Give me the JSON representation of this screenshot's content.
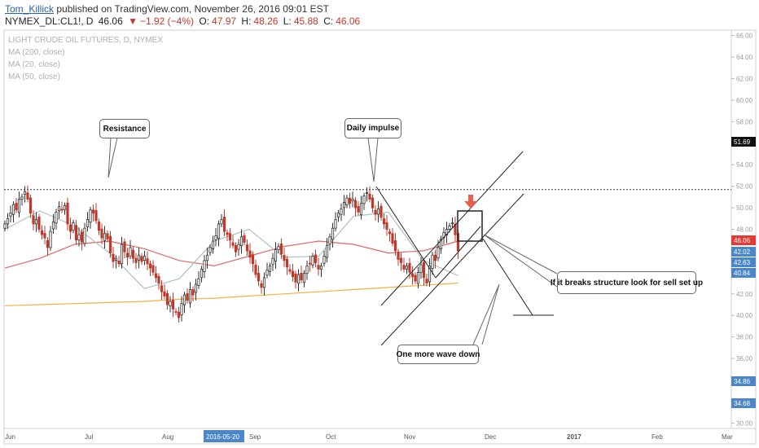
{
  "header": {
    "author": "Tom_Killick",
    "published": "published on TradingView.com, November 26, 2016 09:01 EST",
    "symbol": "NYMEX_DL:CL1!,",
    "interval": "D",
    "last": "46.06",
    "change": "−1.92 (−4%)",
    "open_label": "O:",
    "open": "47.97",
    "high_label": "H:",
    "high": "48.26",
    "low_label": "L:",
    "low": "45.88",
    "close_label": "C:",
    "close": "46.06"
  },
  "legend": {
    "title": "LIGHT CRUDE OIL FUTURES, D, NYMEX",
    "ma200": "MA (200, close)",
    "ma20": "MA (20, close)",
    "ma50": "MA (50, close)"
  },
  "annotations": {
    "resistance": "Resistance",
    "impulse": "Daily impulse",
    "wave": "One more wave down",
    "breaks": "If it breaks structure look for sell set up"
  },
  "colors": {
    "up": "#333333",
    "down": "#c0392b",
    "ma200": "#f5b041",
    "ma50": "#e06666",
    "ma20": "#a8c4c0",
    "price_label": "#e53935",
    "ma_label": "#4a86c8",
    "arrow": "#e8604c"
  },
  "chart_data": {
    "type": "candlestick",
    "title": "LIGHT CRUDE OIL FUTURES, D, NYMEX",
    "ylim": [
      29.5,
      66.5
    ],
    "y_ticks": [
      "30.00",
      "32.00",
      "34.00",
      "36.00",
      "38.00",
      "40.00",
      "42.00",
      "44.00",
      "46.00",
      "48.00",
      "50.00",
      "52.00",
      "54.00",
      "56.00",
      "58.00",
      "60.00",
      "62.00",
      "64.00",
      "66.00"
    ],
    "x_labels": [
      "Jun",
      "Jul",
      "Aug",
      "2016-05-20",
      "Sep",
      "Oct",
      "Nov",
      "Dec",
      "2017",
      "Feb",
      "Mar"
    ],
    "cursor_date": "2016-05-20",
    "resistance": 51.69,
    "price_labels": [
      {
        "text": "51.69",
        "kind": "resistance"
      },
      {
        "text": "46.06",
        "kind": "price"
      },
      {
        "text": "42.02",
        "kind": "ma"
      },
      {
        "text": "42.63",
        "kind": "ma"
      },
      {
        "text": "40.84",
        "kind": "ma"
      },
      {
        "text": "34.86",
        "kind": "ma"
      },
      {
        "text": "34.68",
        "kind": "ma"
      }
    ],
    "closes": [
      48.5,
      49.0,
      49.5,
      50.3,
      49.8,
      50.8,
      51.0,
      51.5,
      50.8,
      49.5,
      48.5,
      48.9,
      48.0,
      47.5,
      47.2,
      46.3,
      47.8,
      48.7,
      49.6,
      50.1,
      49.8,
      50.2,
      48.5,
      47.8,
      48.6,
      47.0,
      47.5,
      46.8,
      48.1,
      48.9,
      49.8,
      49.5,
      48.8,
      47.9,
      47.2,
      47.6,
      47.1,
      45.8,
      45.0,
      45.3,
      44.8,
      46.6,
      45.9,
      45.4,
      46.3,
      45.3,
      44.9,
      45.6,
      45.0,
      45.5,
      44.8,
      44.4,
      44.0,
      43.5,
      43.0,
      42.2,
      41.8,
      41.0,
      41.3,
      40.6,
      40.3,
      39.8,
      41.1,
      41.9,
      41.4,
      42.4,
      41.9,
      42.9,
      43.4,
      44.3,
      45.1,
      45.6,
      46.3,
      46.9,
      47.4,
      48.5,
      48.9,
      47.8,
      47.5,
      47.0,
      46.5,
      45.9,
      46.6,
      47.3,
      46.8,
      46.0,
      45.4,
      44.8,
      43.8,
      43.2,
      42.6,
      43.5,
      44.2,
      44.6,
      45.3,
      46.1,
      46.4,
      45.7,
      45.1,
      44.5,
      44.1,
      43.6,
      43.1,
      43.8,
      43.3,
      43.9,
      44.6,
      44.8,
      45.5,
      44.9,
      44.3,
      44.6,
      45.5,
      46.5,
      47.3,
      48.1,
      48.9,
      49.5,
      49.9,
      50.5,
      50.9,
      50.4,
      50.8,
      50.0,
      49.6,
      50.4,
      51.1,
      51.4,
      50.8,
      50.0,
      49.4,
      49.9,
      49.1,
      48.5,
      48.0,
      47.6,
      46.7,
      46.0,
      45.2,
      44.9,
      44.3,
      44.6,
      44.0,
      43.6,
      43.2,
      44.0,
      44.7,
      43.5,
      43.0,
      44.6,
      45.6,
      45.1,
      46.3,
      47.1,
      47.7,
      48.0,
      48.3,
      48.6,
      47.5,
      46.0
    ],
    "ma200": [
      40.9,
      41.0,
      41.1,
      41.2,
      41.3,
      41.5,
      41.6,
      41.8,
      42.0,
      42.2,
      42.4,
      42.6,
      42.8,
      43.0
    ],
    "ma50": [
      44.4,
      45.3,
      46.6,
      46.9,
      46.2,
      45.1,
      44.6,
      45.5,
      46.4,
      46.9,
      46.6,
      45.8,
      46.0,
      46.9
    ],
    "ma20": [
      48.0,
      49.7,
      48.3,
      45.8,
      42.5,
      43.4,
      46.9,
      48.0,
      45.4,
      45.5,
      49.2,
      49.6,
      45.1,
      43.7
    ]
  }
}
